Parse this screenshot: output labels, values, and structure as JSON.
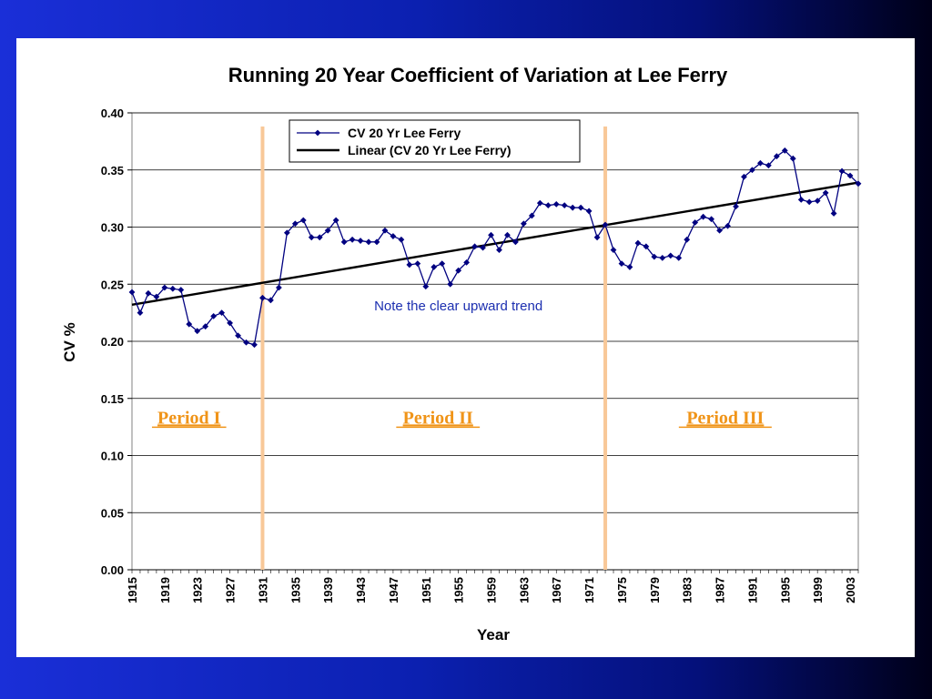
{
  "chart_data": {
    "type": "line",
    "title": "Running 20 Year Coefficient of Variation at Lee Ferry",
    "xlabel": "Year",
    "ylabel": "CV %",
    "xlim": [
      1915,
      2004
    ],
    "ylim": [
      0.0,
      0.4
    ],
    "y_ticks": [
      "0.00",
      "0.05",
      "0.10",
      "0.15",
      "0.20",
      "0.25",
      "0.30",
      "0.35",
      "0.40"
    ],
    "x_tick_labels": [
      "1915",
      "1919",
      "1923",
      "1927",
      "1931",
      "1935",
      "1939",
      "1943",
      "1947",
      "1951",
      "1955",
      "1959",
      "1963",
      "1967",
      "1971",
      "1975",
      "1979",
      "1983",
      "1987",
      "1991",
      "1995",
      "1999",
      "2003"
    ],
    "grid": "horizontal",
    "legend_position": "top-left",
    "series": [
      {
        "name": "CV 20 Yr Lee Ferry",
        "color": "#000080",
        "marker": "diamond",
        "x": [
          1915,
          1916,
          1917,
          1918,
          1919,
          1920,
          1921,
          1922,
          1923,
          1924,
          1925,
          1926,
          1927,
          1928,
          1929,
          1930,
          1931,
          1932,
          1933,
          1934,
          1935,
          1936,
          1937,
          1938,
          1939,
          1940,
          1941,
          1942,
          1943,
          1944,
          1945,
          1946,
          1947,
          1948,
          1949,
          1950,
          1951,
          1952,
          1953,
          1954,
          1955,
          1956,
          1957,
          1958,
          1959,
          1960,
          1961,
          1962,
          1963,
          1964,
          1965,
          1966,
          1967,
          1968,
          1969,
          1970,
          1971,
          1972,
          1973,
          1974,
          1975,
          1976,
          1977,
          1978,
          1979,
          1980,
          1981,
          1982,
          1983,
          1984,
          1985,
          1986,
          1987,
          1988,
          1989,
          1990,
          1991,
          1992,
          1993,
          1994,
          1995,
          1996,
          1997,
          1998,
          1999,
          2000,
          2001,
          2002,
          2003,
          2004
        ],
        "y": [
          0.243,
          0.225,
          0.242,
          0.239,
          0.247,
          0.246,
          0.245,
          0.215,
          0.209,
          0.213,
          0.222,
          0.225,
          0.216,
          0.205,
          0.199,
          0.197,
          0.238,
          0.236,
          0.247,
          0.295,
          0.303,
          0.306,
          0.291,
          0.291,
          0.297,
          0.306,
          0.287,
          0.289,
          0.288,
          0.287,
          0.287,
          0.297,
          0.292,
          0.289,
          0.267,
          0.268,
          0.248,
          0.265,
          0.268,
          0.25,
          0.262,
          0.269,
          0.283,
          0.282,
          0.293,
          0.28,
          0.293,
          0.287,
          0.303,
          0.31,
          0.321,
          0.319,
          0.32,
          0.319,
          0.317,
          0.317,
          0.314,
          0.291,
          0.302,
          0.28,
          0.268,
          0.265,
          0.286,
          0.283,
          0.274,
          0.273,
          0.275,
          0.273,
          0.289,
          0.304,
          0.309,
          0.307,
          0.297,
          0.301,
          0.318,
          0.344,
          0.35,
          0.356,
          0.354,
          0.362,
          0.367,
          0.36,
          0.324,
          0.322,
          0.323,
          0.33,
          0.312,
          0.349,
          0.345,
          0.338
        ]
      },
      {
        "name": "Linear (CV 20 Yr Lee Ferry)",
        "color": "#000000",
        "x": [
          1915,
          2004
        ],
        "y": [
          0.232,
          0.339
        ]
      }
    ],
    "vertical_lines": [
      {
        "x": 1931,
        "color": "#f8c898"
      },
      {
        "x": 1973,
        "color": "#f8c898"
      }
    ],
    "annotations": [
      {
        "text": "Note the clear upward trend",
        "x": 1955,
        "y": 0.227,
        "color": "#1c2fb0"
      },
      {
        "text": "Period I",
        "x": 1922,
        "y": 0.128,
        "color": "#f09418"
      },
      {
        "text": "Period II",
        "x": 1952.5,
        "y": 0.128,
        "color": "#f09418"
      },
      {
        "text": "Period III",
        "x": 1987.7,
        "y": 0.128,
        "color": "#f09418"
      }
    ]
  }
}
